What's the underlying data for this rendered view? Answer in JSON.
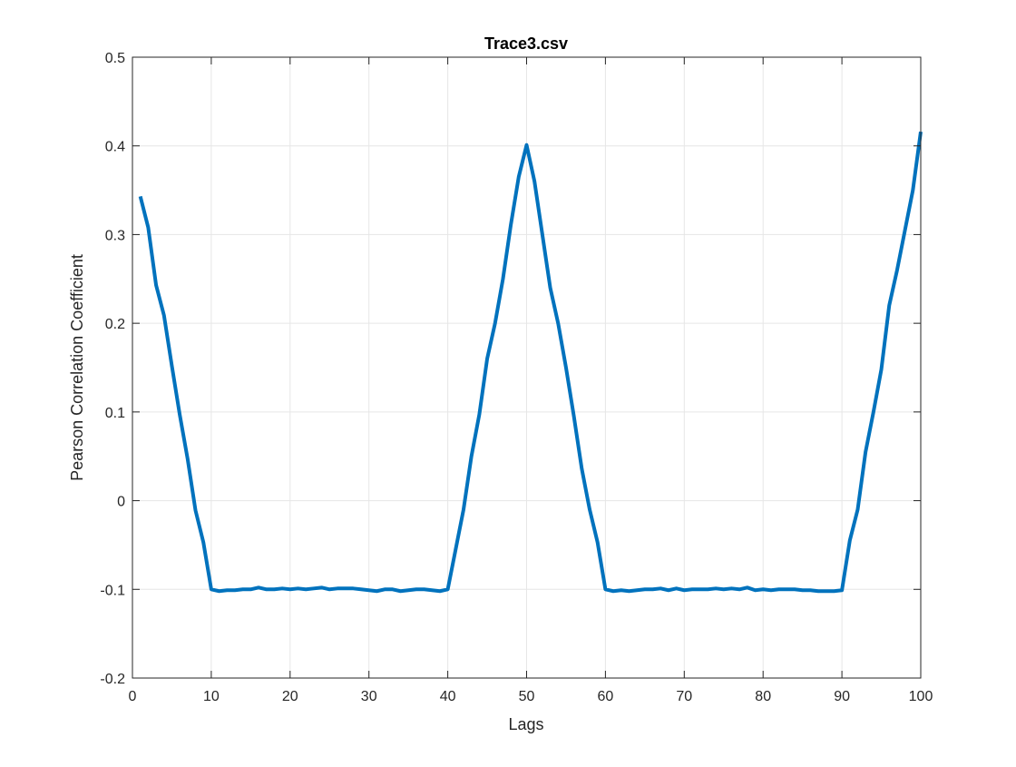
{
  "colors": {
    "series": "#0072BD",
    "grid": "#e6e6e6",
    "axis": "#262626",
    "background": "#ffffff"
  },
  "chart_data": {
    "type": "line",
    "title": "Trace3.csv",
    "xlabel": "Lags",
    "ylabel": "Pearson Correlation Coefficient",
    "xlim": [
      0,
      100
    ],
    "ylim": [
      -0.2,
      0.5
    ],
    "xticks": [
      0,
      10,
      20,
      30,
      40,
      50,
      60,
      70,
      80,
      90,
      100
    ],
    "yticks": [
      -0.2,
      -0.1,
      0,
      0.1,
      0.2,
      0.3,
      0.4,
      0.5
    ],
    "xtick_labels": [
      "0",
      "10",
      "20",
      "30",
      "40",
      "50",
      "60",
      "70",
      "80",
      "90",
      "100"
    ],
    "ytick_labels": [
      "-0.2",
      "-0.1",
      "0",
      "0.1",
      "0.2",
      "0.3",
      "0.4",
      "0.5"
    ],
    "grid": true,
    "box": true,
    "series": [
      {
        "x": [
          1,
          2,
          3,
          4,
          5,
          6,
          7,
          8,
          9,
          10,
          11,
          12,
          13,
          14,
          15,
          16,
          17,
          18,
          19,
          20,
          21,
          22,
          23,
          24,
          25,
          26,
          27,
          28,
          29,
          30,
          31,
          32,
          33,
          34,
          35,
          36,
          37,
          38,
          39,
          40,
          41,
          42,
          43,
          44,
          45,
          46,
          47,
          48,
          49,
          50,
          51,
          52,
          53,
          54,
          55,
          56,
          57,
          58,
          59,
          60,
          61,
          62,
          63,
          64,
          65,
          66,
          67,
          68,
          69,
          70,
          71,
          72,
          73,
          74,
          75,
          76,
          77,
          78,
          79,
          80,
          81,
          82,
          83,
          84,
          85,
          86,
          87,
          88,
          89,
          90,
          91,
          92,
          93,
          94,
          95,
          96,
          97,
          98,
          99,
          100
        ],
        "y": [
          0.343,
          0.308,
          0.243,
          0.209,
          0.152,
          0.097,
          0.047,
          -0.011,
          -0.047,
          -0.1,
          -0.102,
          -0.101,
          -0.101,
          -0.1,
          -0.1,
          -0.098,
          -0.1,
          -0.1,
          -0.099,
          -0.1,
          -0.099,
          -0.1,
          -0.099,
          -0.098,
          -0.1,
          -0.099,
          -0.099,
          -0.099,
          -0.1,
          -0.101,
          -0.102,
          -0.1,
          -0.1,
          -0.102,
          -0.101,
          -0.1,
          -0.1,
          -0.101,
          -0.102,
          -0.1,
          -0.055,
          -0.01,
          0.05,
          0.097,
          0.16,
          0.2,
          0.25,
          0.311,
          0.365,
          0.401,
          0.36,
          0.3,
          0.24,
          0.2,
          0.15,
          0.095,
          0.036,
          -0.01,
          -0.047,
          -0.1,
          -0.102,
          -0.101,
          -0.102,
          -0.101,
          -0.1,
          -0.1,
          -0.099,
          -0.101,
          -0.099,
          -0.101,
          -0.1,
          -0.1,
          -0.1,
          -0.099,
          -0.1,
          -0.099,
          -0.1,
          -0.098,
          -0.101,
          -0.1,
          -0.101,
          -0.1,
          -0.1,
          -0.1,
          -0.101,
          -0.101,
          -0.102,
          -0.102,
          -0.102,
          -0.101,
          -0.045,
          -0.01,
          0.055,
          0.1,
          0.148,
          0.22,
          0.26,
          0.305,
          0.35,
          0.416
        ]
      }
    ]
  }
}
